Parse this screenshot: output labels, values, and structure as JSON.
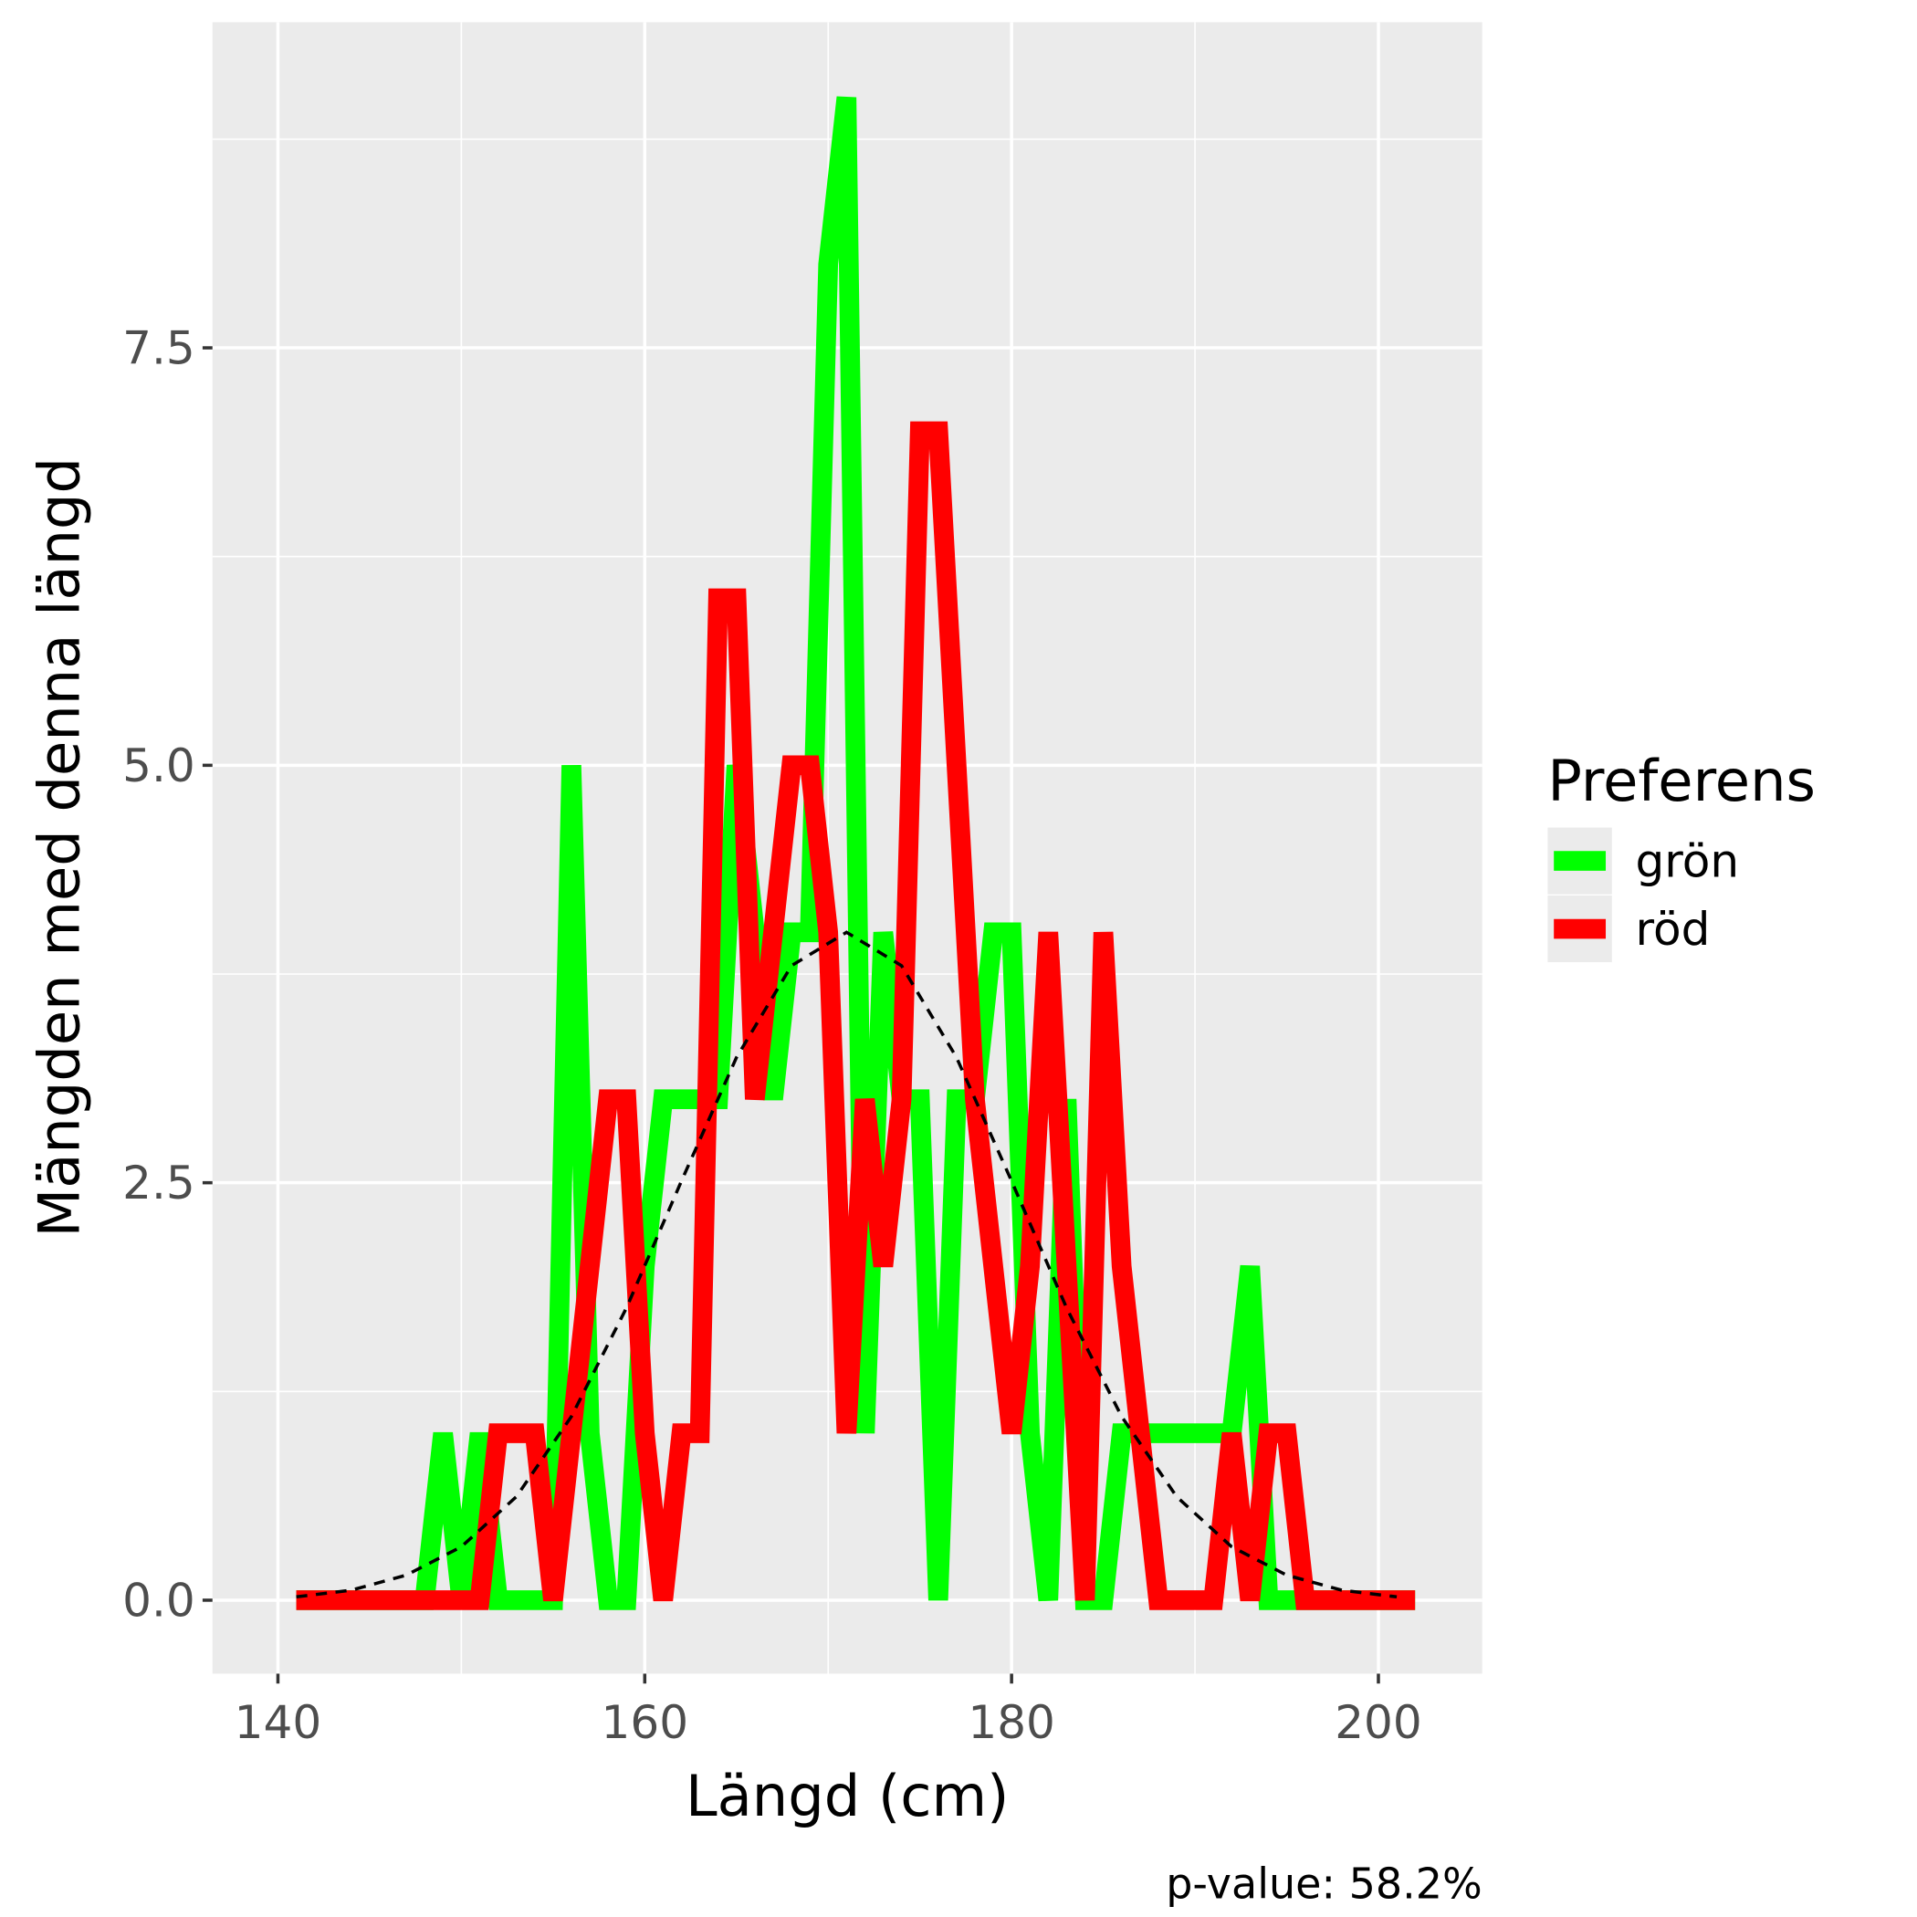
{
  "chart_data": {
    "type": "line",
    "x_label": "Längd (cm)",
    "y_label": "Mängden med denna längd",
    "caption": "p-value: 58.2%",
    "legend_title": "Preferens",
    "legend_position": "right",
    "x": [
      141,
      142,
      143,
      144,
      145,
      146,
      147,
      148,
      149,
      150,
      151,
      152,
      153,
      154,
      155,
      156,
      157,
      158,
      159,
      160,
      161,
      162,
      163,
      164,
      165,
      166,
      167,
      168,
      169,
      170,
      171,
      172,
      173,
      174,
      175,
      176,
      177,
      178,
      179,
      180,
      181,
      182,
      183,
      184,
      185,
      186,
      187,
      188,
      189,
      190,
      191,
      192,
      193,
      194,
      195,
      196,
      197,
      198,
      199,
      200,
      201,
      202
    ],
    "series": [
      {
        "name": "grön",
        "color": "#00ff00",
        "values": [
          0,
          0,
          0,
          0,
          0,
          0,
          0,
          0,
          1,
          0,
          1,
          0,
          0,
          0,
          0,
          5,
          1,
          0,
          0,
          2,
          3,
          3,
          3,
          3,
          5,
          4,
          3,
          4,
          4,
          8,
          9,
          1,
          4,
          3,
          3,
          0,
          3,
          3,
          4,
          4,
          1,
          0,
          3,
          0,
          0,
          1,
          1,
          1,
          1,
          1,
          1,
          1,
          2,
          0,
          0,
          0,
          0,
          0,
          0,
          0,
          0,
          0
        ]
      },
      {
        "name": "röd",
        "color": "#ff0000",
        "values": [
          0,
          0,
          0,
          0,
          0,
          0,
          0,
          0,
          0,
          0,
          0,
          1,
          1,
          1,
          0,
          1,
          2,
          3,
          3,
          1,
          0,
          1,
          1,
          6,
          6,
          3,
          4,
          5,
          5,
          4,
          1,
          3,
          2,
          3,
          7,
          7,
          5,
          3,
          2,
          1,
          2,
          4,
          2,
          0,
          4,
          2,
          1,
          0,
          0,
          0,
          0,
          1,
          0,
          1,
          1,
          0,
          0,
          0,
          0,
          0,
          0,
          0
        ]
      }
    ],
    "reference_curve": {
      "color": "#000000",
      "dashed": true,
      "x": [
        141,
        144,
        147,
        150,
        153,
        156,
        159,
        162,
        165,
        168,
        171,
        174,
        177,
        180,
        183,
        186,
        189,
        192,
        195,
        198,
        201
      ],
      "values": [
        0.02,
        0.06,
        0.15,
        0.32,
        0.62,
        1.1,
        1.75,
        2.51,
        3.25,
        3.8,
        4.0,
        3.8,
        3.25,
        2.51,
        1.75,
        1.1,
        0.62,
        0.32,
        0.15,
        0.06,
        0.02
      ]
    },
    "xlim": [
      136.43,
      205.66
    ],
    "ylim": [
      -0.44,
      9.45
    ],
    "xticks": [
      140,
      160,
      180,
      200
    ],
    "yticks": [
      {
        "value": 0,
        "label": "0.0"
      },
      {
        "value": 2.5,
        "label": "2.5"
      },
      {
        "value": 5,
        "label": "5.0"
      },
      {
        "value": 7.5,
        "label": "7.5"
      }
    ],
    "x_minor_grid": [
      150,
      170,
      190
    ],
    "y_minor_grid": [
      1.25,
      3.75,
      6.25,
      8.75
    ],
    "grid": true
  }
}
